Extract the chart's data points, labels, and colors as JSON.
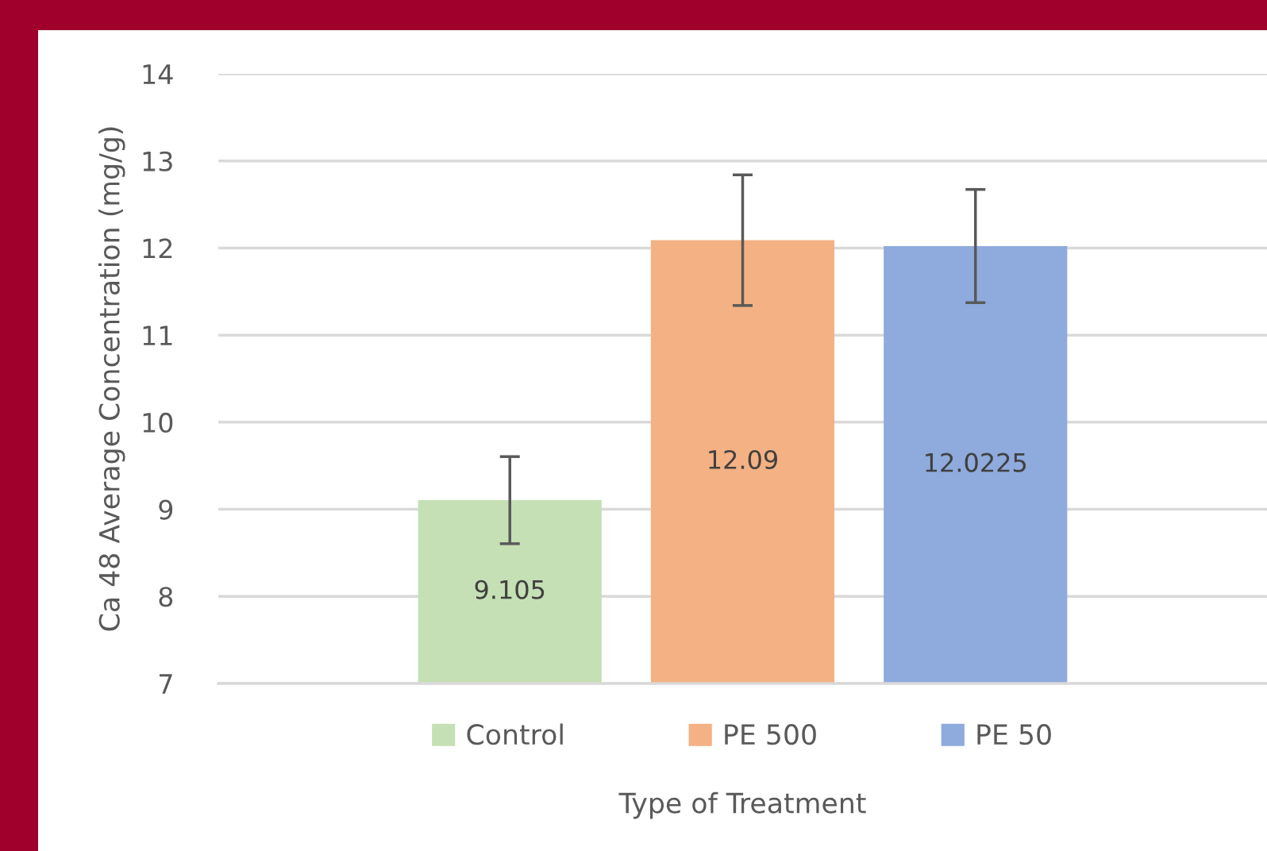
{
  "chart_data": {
    "type": "bar",
    "xlabel": "Type of Treatment",
    "ylabel": "Ca 48 Average Concentration (mg/g)",
    "categories": [
      null
    ],
    "series": [
      {
        "name": "Control",
        "color": "#c5e0b4",
        "values": [
          9.105
        ],
        "errors": [
          0.5
        ]
      },
      {
        "name": "PE 500",
        "color": "#f4b183",
        "values": [
          12.09
        ],
        "errors": [
          0.75
        ]
      },
      {
        "name": "PE 50",
        "color": "#8faadc",
        "values": [
          12.0225
        ],
        "errors": [
          0.65
        ]
      }
    ],
    "ylim": [
      7,
      14
    ],
    "yticks": [
      7,
      8,
      9,
      10,
      11,
      12,
      13,
      14
    ],
    "grid": "y",
    "legend": "bottom",
    "data_labels": true
  }
}
